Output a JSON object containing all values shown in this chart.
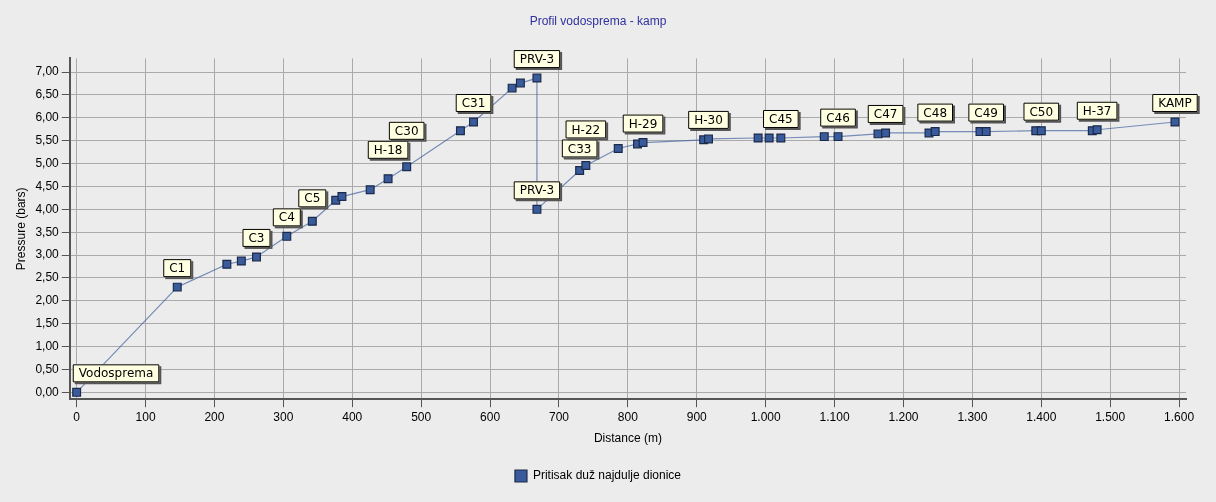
{
  "chart_data": {
    "type": "line",
    "title": "Profil vodosprema - kamp",
    "xlabel": "Distance (m)",
    "ylabel": "Pressure (bars)",
    "legend": "bottom",
    "marker": "square",
    "grid": true,
    "x": [
      0,
      146,
      218,
      239,
      261,
      305,
      342,
      376,
      385,
      426,
      452,
      479,
      557,
      576,
      632,
      644,
      668,
      668,
      730,
      739,
      786,
      814,
      822,
      910,
      917,
      989,
      1005,
      1022,
      1085,
      1105,
      1163,
      1174,
      1237,
      1246,
      1311,
      1320,
      1392,
      1400,
      1474,
      1481,
      1594
    ],
    "series": [
      {
        "name": "Pritisak duž najdulje dionice",
        "color": "#3a5b9b",
        "values": [
          0.0,
          2.3,
          2.8,
          2.87,
          2.96,
          3.41,
          3.74,
          4.2,
          4.28,
          4.43,
          4.67,
          4.93,
          5.72,
          5.91,
          6.65,
          6.76,
          6.87,
          4.0,
          4.85,
          4.96,
          5.33,
          5.43,
          5.46,
          5.52,
          5.54,
          5.56,
          5.56,
          5.56,
          5.59,
          5.59,
          5.65,
          5.67,
          5.67,
          5.7,
          5.7,
          5.7,
          5.72,
          5.72,
          5.72,
          5.74,
          5.91
        ],
        "value_labels": [
          "Vodosprema",
          "C1",
          null,
          null,
          "C3",
          "C4",
          "C5",
          null,
          null,
          null,
          "H-18",
          "C30",
          null,
          "C31",
          null,
          null,
          "PRV-3",
          "PRV-3",
          "C33",
          "H-22",
          null,
          null,
          "H-29",
          null,
          "H-30",
          null,
          null,
          "C45",
          null,
          "C46",
          null,
          "C47",
          null,
          "C48",
          null,
          "C49",
          null,
          "C50",
          null,
          "H-37",
          "KAMP"
        ]
      }
    ],
    "xlim": [
      -10,
      1610
    ],
    "xticks": [
      0,
      100,
      200,
      300,
      400,
      500,
      600,
      700,
      800,
      900,
      {
        "value": 1000,
        "label": "1.000"
      },
      {
        "value": 1100,
        "label": "1.100"
      },
      {
        "value": 1200,
        "label": "1.200"
      },
      {
        "value": 1300,
        "label": "1.300"
      },
      {
        "value": 1400,
        "label": "1.400"
      },
      {
        "value": 1500,
        "label": "1.500"
      },
      {
        "value": 1600,
        "label": "1.600"
      }
    ],
    "ylim": [
      -0.15,
      7.3
    ],
    "yticks": [
      {
        "value": 0,
        "label": "0,00"
      },
      {
        "value": 0.5,
        "label": "0,50"
      },
      {
        "value": 1,
        "label": "1,00"
      },
      {
        "value": 1.5,
        "label": "1,50"
      },
      {
        "value": 2,
        "label": "2,00"
      },
      {
        "value": 2.5,
        "label": "2,50"
      },
      {
        "value": 3,
        "label": "3,00"
      },
      {
        "value": 3.5,
        "label": "3,50"
      },
      {
        "value": 4,
        "label": "4,00"
      },
      {
        "value": 4.5,
        "label": "4,50"
      },
      {
        "value": 5,
        "label": "5,00"
      },
      {
        "value": 5.5,
        "label": "5,50"
      },
      {
        "value": 6,
        "label": "6,00"
      },
      {
        "value": 6.5,
        "label": "6,50"
      },
      {
        "value": 7,
        "label": "7,00"
      }
    ]
  }
}
